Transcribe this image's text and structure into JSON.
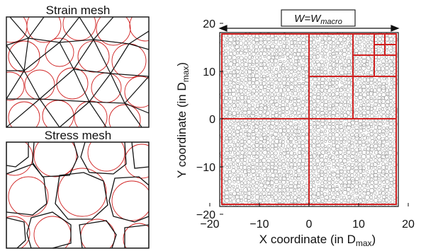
{
  "panels": {
    "strain": {
      "title": "Strain mesh"
    },
    "stress": {
      "title": "Stress mesh"
    }
  },
  "scatter": {
    "width_label_main": "W=W",
    "width_label_sub": "macro",
    "xlabel_main": "X coordinate (in D",
    "xlabel_sub": "max",
    "xlabel_end": ")",
    "ylabel_main": "Y coordinate (in D",
    "ylabel_sub": "max",
    "ylabel_end": ")",
    "xticks": [
      "−20",
      "−10",
      "0",
      "10",
      "20"
    ],
    "yticks": [
      "20",
      "10",
      "0",
      "−10",
      "−20"
    ]
  },
  "colors": {
    "mesh_red": "#d02020",
    "particle_gray": "#9a9a9a",
    "line_black": "#111111"
  }
}
